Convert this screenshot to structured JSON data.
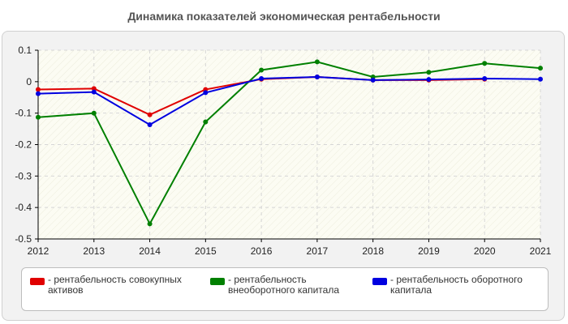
{
  "chart_data": {
    "type": "line",
    "title": "Динамика показателей экономическая рентабельности",
    "x": [
      "2012",
      "2013",
      "2014",
      "2015",
      "2016",
      "2017",
      "2018",
      "2019",
      "2020",
      "2021"
    ],
    "ylim": [
      -0.5,
      0.1
    ],
    "yticks": [
      "0.1",
      "0",
      "-0.1",
      "-0.2",
      "-0.3",
      "-0.4",
      "-0.5"
    ],
    "ytick_values": [
      0.1,
      0,
      -0.1,
      -0.2,
      -0.3,
      -0.4,
      -0.5
    ],
    "grid": true,
    "legend_placement": "bottom",
    "series": [
      {
        "name": "- рентабельность совокупных активов",
        "color": "#e00000",
        "values": [
          -0.025,
          -0.022,
          -0.105,
          -0.025,
          0.008,
          0.015,
          0.005,
          0.005,
          0.008,
          null
        ]
      },
      {
        "name": "- рентабельность внеоборотного капитала",
        "color": "#008000",
        "values": [
          -0.113,
          -0.1,
          -0.452,
          -0.128,
          0.037,
          0.063,
          0.015,
          0.03,
          0.058,
          0.043
        ]
      },
      {
        "name": "- рентабельность оборотного капитала",
        "color": "#0000e0",
        "values": [
          -0.038,
          -0.033,
          -0.137,
          -0.035,
          0.01,
          0.015,
          0.005,
          0.007,
          0.01,
          0.008
        ]
      }
    ]
  },
  "legend": {
    "items": [
      {
        "line1": "- рентабельность совокупных",
        "line2": "активов",
        "color": "#e00000"
      },
      {
        "line1": "- рентабельность",
        "line2": "внеоборотного капитала",
        "color": "#008000"
      },
      {
        "line1": "- рентабельность оборотного",
        "line2": "капитала",
        "color": "#0000e0"
      }
    ]
  }
}
